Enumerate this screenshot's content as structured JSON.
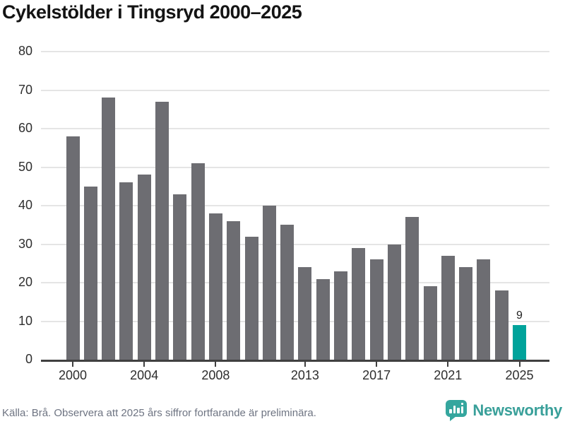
{
  "title": "Cykelstölder i Tingsryd 2000–2025",
  "chart_data": {
    "type": "bar",
    "title": "Cykelstölder i Tingsryd 2000–2025",
    "categories": [
      "2000",
      "2001",
      "2002",
      "2003",
      "2004",
      "2005",
      "2006",
      "2007",
      "2008",
      "2009",
      "2010",
      "2011",
      "2012",
      "2013",
      "2014",
      "2015",
      "2016",
      "2017",
      "2018",
      "2019",
      "2020",
      "2021",
      "2022",
      "2023",
      "2024",
      "2025"
    ],
    "values": [
      58,
      45,
      68,
      46,
      48,
      67,
      43,
      51,
      38,
      36,
      32,
      40,
      35,
      24,
      21,
      23,
      29,
      26,
      30,
      37,
      19,
      27,
      24,
      26,
      18,
      9
    ],
    "xlabel": "",
    "ylabel": "",
    "ylim": [
      0,
      80
    ],
    "yticks": [
      0,
      10,
      20,
      30,
      40,
      50,
      60,
      70,
      80
    ],
    "xtick_labels": [
      "2000",
      "2004",
      "2008",
      "2013",
      "2017",
      "2021",
      "2025"
    ],
    "grid": true,
    "legend_position": "none",
    "bar_color": "#6d6d72",
    "highlight": {
      "index": 25,
      "category": "2025",
      "value": 9,
      "label": "9",
      "color": "#00a39b"
    }
  },
  "footer": {
    "source": "Källa: Brå. Observera att 2025 års siffror fortfarande är preliminära.",
    "brand": "Newsworthy",
    "brand_color": "#3aa09a",
    "logo_color": "#35a69e"
  }
}
